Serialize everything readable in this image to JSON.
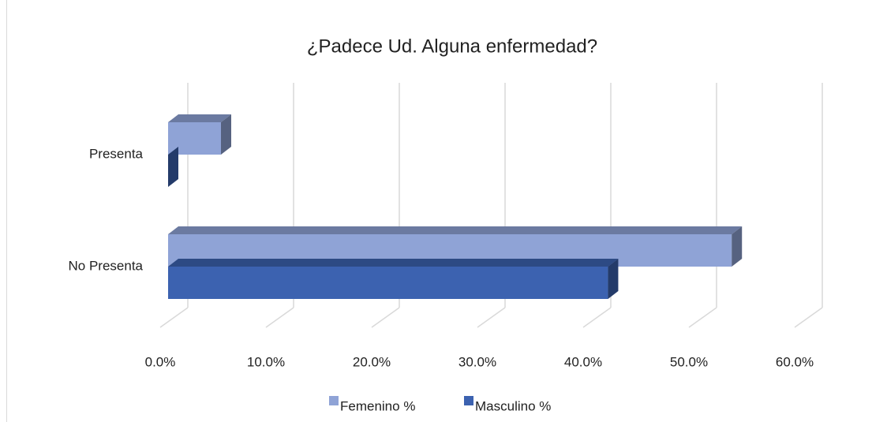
{
  "chart_data": {
    "type": "bar3d",
    "title": "¿Padece Ud. Alguna enfermedad?",
    "categories": [
      "Presenta",
      "No Presenta"
    ],
    "series": [
      {
        "name": "Femenino %",
        "color": "#8fa3d6",
        "values": [
          5.0,
          53.3
        ]
      },
      {
        "name": "Masculino %",
        "color": "#3c62b0",
        "values": [
          0,
          41.6
        ]
      }
    ],
    "xlim": [
      0,
      60
    ],
    "xticks": [
      {
        "value": 0,
        "label": "0.0%"
      },
      {
        "value": 10,
        "label": "10.0%"
      },
      {
        "value": 20,
        "label": "20.0%"
      },
      {
        "value": 30,
        "label": "30.0%"
      },
      {
        "value": 40,
        "label": "40.0%"
      },
      {
        "value": 50,
        "label": "50.0%"
      },
      {
        "value": 60,
        "label": "60.0%"
      }
    ],
    "grid": true,
    "legend": "bottom"
  }
}
